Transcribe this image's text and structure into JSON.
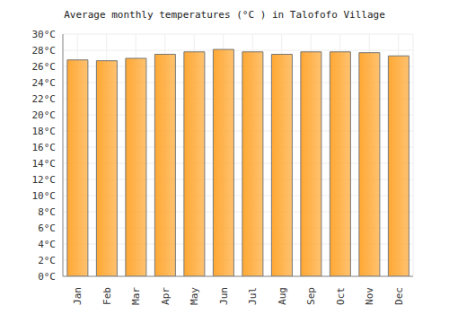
{
  "chart_data": {
    "type": "bar",
    "title": "Average monthly temperatures (°C ) in Talofofo Village",
    "categories": [
      "Jan",
      "Feb",
      "Mar",
      "Apr",
      "May",
      "Jun",
      "Jul",
      "Aug",
      "Sep",
      "Oct",
      "Nov",
      "Dec"
    ],
    "values": [
      26.8,
      26.7,
      27.0,
      27.5,
      27.8,
      28.1,
      27.8,
      27.5,
      27.8,
      27.8,
      27.7,
      27.3
    ],
    "color": "#ffa833",
    "ylim": [
      0,
      30
    ],
    "yticks": [
      {
        "value": 0,
        "label": "0°C"
      },
      {
        "value": 2,
        "label": "2°C"
      },
      {
        "value": 4,
        "label": "4°C"
      },
      {
        "value": 6,
        "label": "6°C"
      },
      {
        "value": 8,
        "label": "8°C"
      },
      {
        "value": 10,
        "label": "10°C"
      },
      {
        "value": 12,
        "label": "12°C"
      },
      {
        "value": 14,
        "label": "14°C"
      },
      {
        "value": 16,
        "label": "16°C"
      },
      {
        "value": 18,
        "label": "18°C"
      },
      {
        "value": 20,
        "label": "20°C"
      },
      {
        "value": 22,
        "label": "22°C"
      },
      {
        "value": 24,
        "label": "24°C"
      },
      {
        "value": 26,
        "label": "26°C"
      },
      {
        "value": 28,
        "label": "28°C"
      },
      {
        "value": 30,
        "label": "30°C"
      }
    ],
    "grid": true
  }
}
